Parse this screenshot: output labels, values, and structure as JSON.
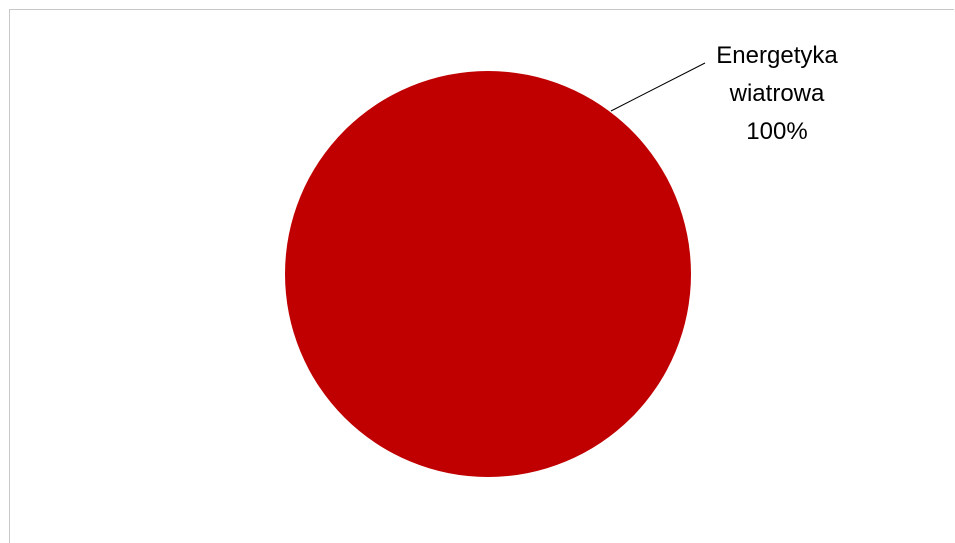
{
  "chart_data": {
    "type": "pie",
    "categories": [
      "Energetyka wiatrowa"
    ],
    "values": [
      100
    ],
    "colors": [
      "#c00000"
    ],
    "data_labels": [
      {
        "category_lines": [
          "Energetyka",
          "wiatrowa"
        ],
        "percent": "100%"
      }
    ],
    "title": "",
    "legend": "none"
  }
}
